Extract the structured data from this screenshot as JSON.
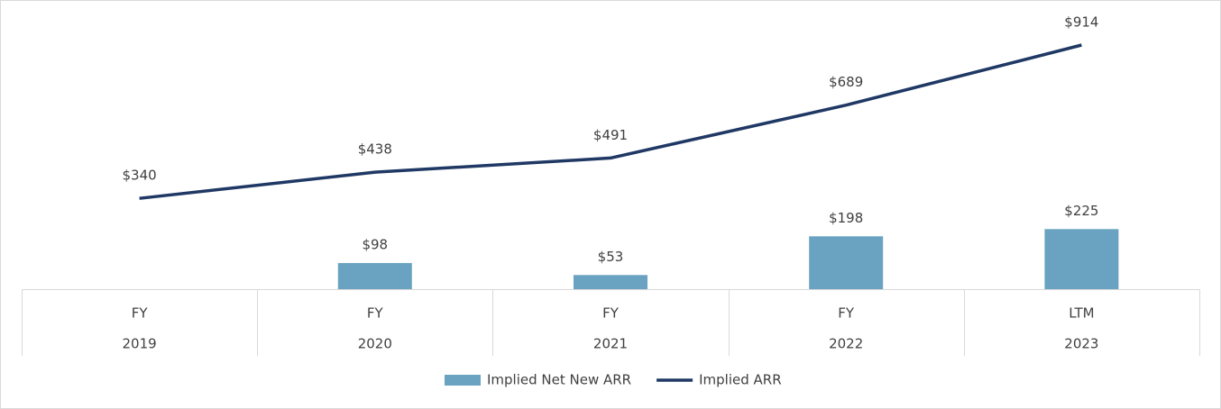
{
  "chart_data": {
    "type": "combo",
    "categories": [
      [
        "FY",
        "2019"
      ],
      [
        "FY",
        "2020"
      ],
      [
        "FY",
        "2021"
      ],
      [
        "FY",
        "2022"
      ],
      [
        "LTM",
        "2023"
      ]
    ],
    "series": [
      {
        "name": "Implied Net New ARR",
        "type": "bar",
        "color": "#6aa3c1",
        "values": [
          null,
          98,
          53,
          198,
          225
        ],
        "value_labels": [
          null,
          "$98",
          "$53",
          "$198",
          "$225"
        ]
      },
      {
        "name": "Implied ARR",
        "type": "line",
        "color": "#1f3864",
        "values": [
          340,
          438,
          491,
          689,
          914
        ],
        "value_labels": [
          "$340",
          "$438",
          "$491",
          "$689",
          "$914"
        ]
      }
    ],
    "legend": "bottom"
  }
}
